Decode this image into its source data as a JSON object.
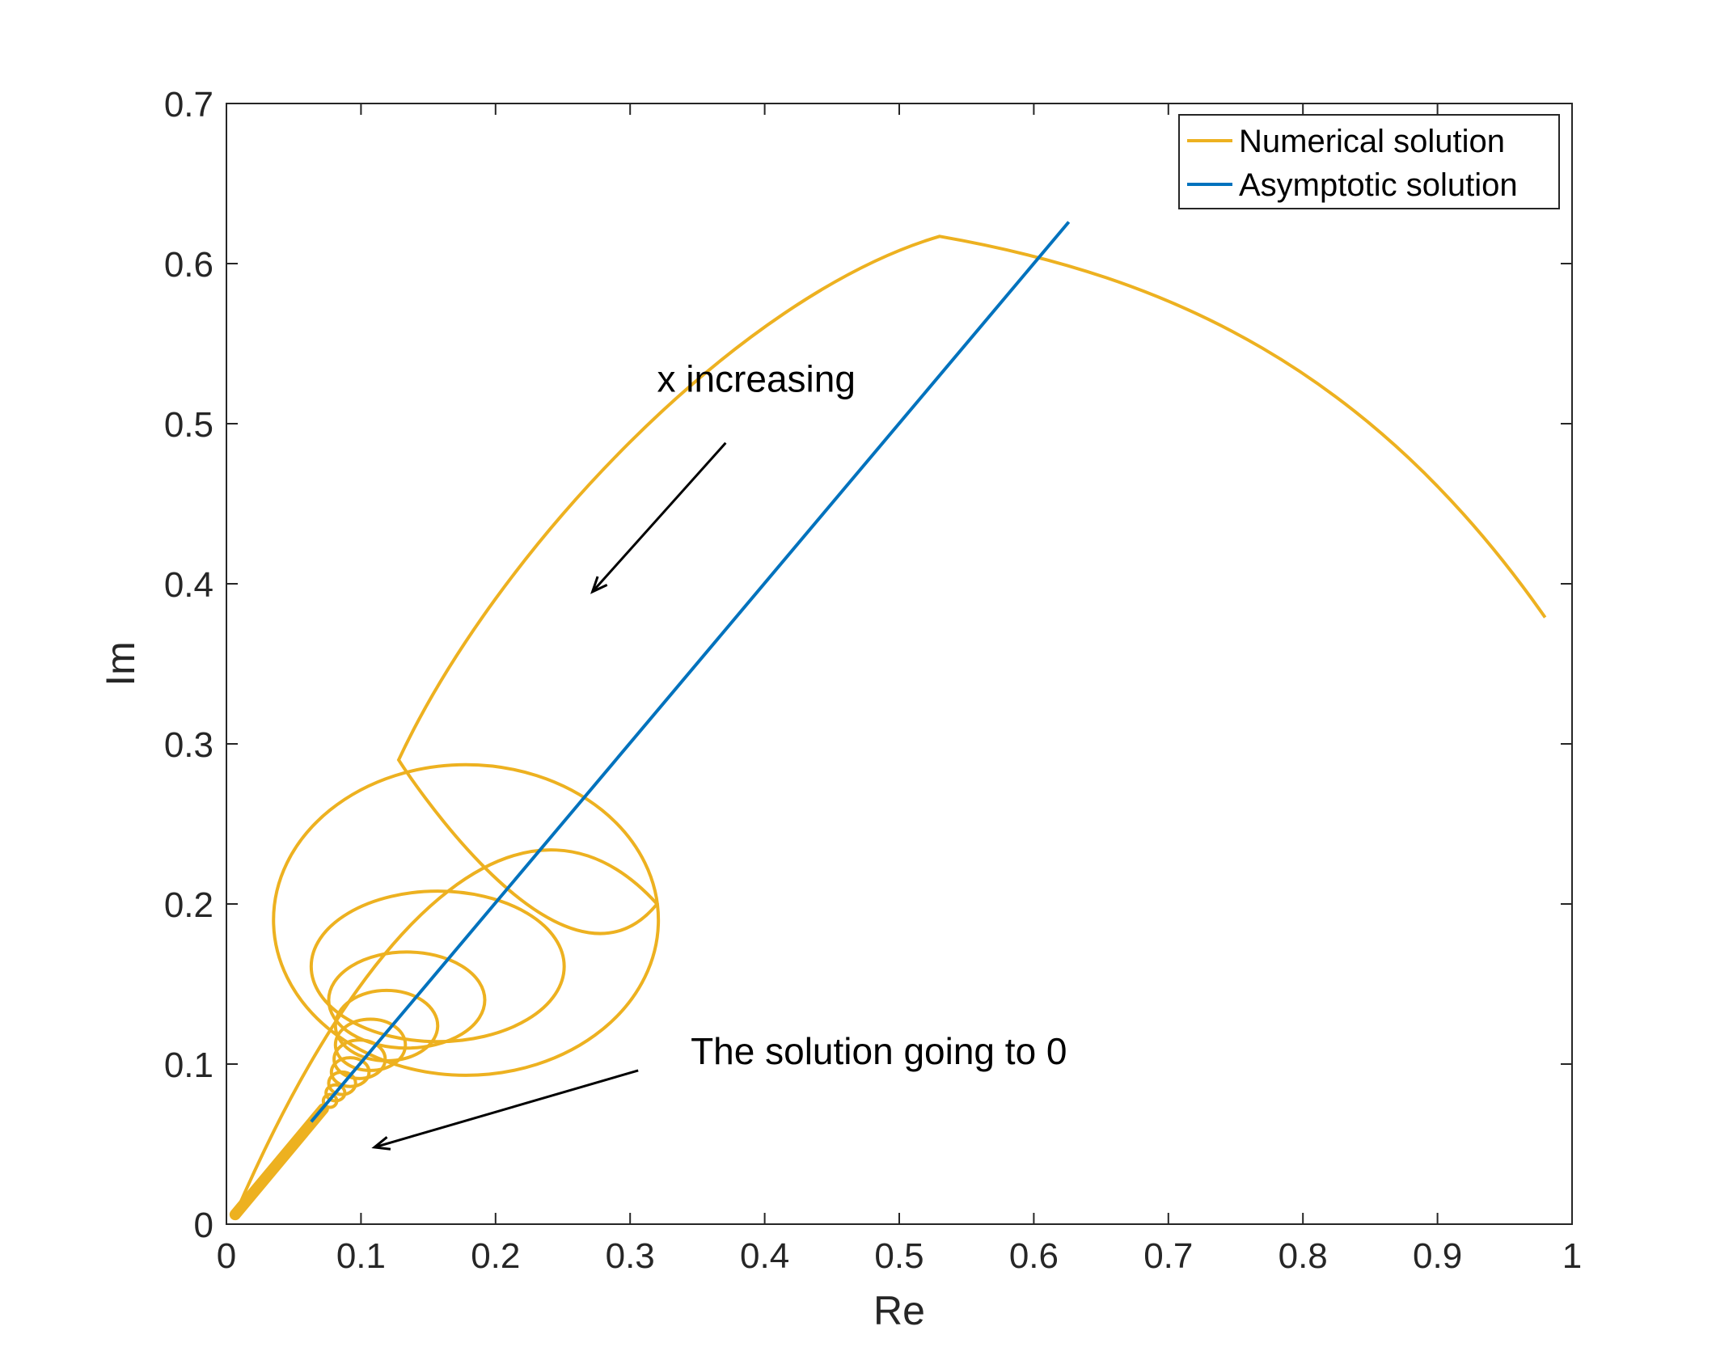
{
  "chart_data": {
    "type": "line",
    "title": "",
    "xlabel": "Re",
    "ylabel": "Im",
    "xlim": [
      0,
      1
    ],
    "ylim": [
      0,
      0.7
    ],
    "grid": false,
    "legend_position": "top-right",
    "x_ticks": [
      0,
      0.1,
      0.2,
      0.3,
      0.4,
      0.5,
      0.6,
      0.7,
      0.8,
      0.9,
      1
    ],
    "x_tick_labels": [
      "0",
      "0.1",
      "0.2",
      "0.3",
      "0.4",
      "0.5",
      "0.6",
      "0.7",
      "0.8",
      "0.9",
      "1"
    ],
    "y_ticks": [
      0,
      0.1,
      0.2,
      0.3,
      0.4,
      0.5,
      0.6,
      0.7
    ],
    "y_tick_labels": [
      "0",
      "0.1",
      "0.2",
      "0.3",
      "0.4",
      "0.5",
      "0.6",
      "0.7"
    ],
    "series": [
      {
        "name": "Numerical solution",
        "color": "#EDB120",
        "description": "spiral of shrinking loops converging toward the origin",
        "anchor_points": {
          "x": [
            0.98,
            0.85,
            0.7,
            0.53,
            0.38,
            0.2,
            0.128,
            0.25,
            0.32,
            0.226,
            0.106,
            0.0065
          ],
          "y": [
            0.379,
            0.535,
            0.592,
            0.617,
            0.58,
            0.42,
            0.29,
            0.128,
            0.2,
            0.287,
            0.2,
            0.006
          ]
        },
        "loops": [
          {
            "cx": 0.178,
            "cy": 0.19,
            "rx": 0.143,
            "ry": 0.097
          },
          {
            "cx": 0.157,
            "cy": 0.161,
            "rx": 0.094,
            "ry": 0.047
          },
          {
            "cx": 0.134,
            "cy": 0.14,
            "rx": 0.058,
            "ry": 0.03
          },
          {
            "cx": 0.119,
            "cy": 0.124,
            "rx": 0.038,
            "ry": 0.022
          },
          {
            "cx": 0.107,
            "cy": 0.112,
            "rx": 0.026,
            "ry": 0.016
          },
          {
            "cx": 0.099,
            "cy": 0.103,
            "rx": 0.019,
            "ry": 0.012
          },
          {
            "cx": 0.092,
            "cy": 0.095,
            "rx": 0.014,
            "ry": 0.009
          },
          {
            "cx": 0.086,
            "cy": 0.088,
            "rx": 0.01,
            "ry": 0.007
          },
          {
            "cx": 0.081,
            "cy": 0.082,
            "rx": 0.007,
            "ry": 0.005
          },
          {
            "cx": 0.077,
            "cy": 0.077,
            "rx": 0.005,
            "ry": 0.004
          }
        ]
      },
      {
        "name": "Asymptotic solution",
        "color": "#0072BD",
        "x": [
          0.063,
          0.626
        ],
        "y": [
          0.064,
          0.626
        ]
      }
    ],
    "annotations": [
      {
        "text": "x increasing",
        "text_x": 0.32,
        "text_y": 0.52,
        "arrow_from": [
          0.371,
          0.488
        ],
        "arrow_to": [
          0.272,
          0.395
        ]
      },
      {
        "text": "The solution going to 0",
        "text_x": 0.345,
        "text_y": 0.1,
        "arrow_from": [
          0.306,
          0.096
        ],
        "arrow_to": [
          0.11,
          0.048
        ]
      }
    ]
  }
}
